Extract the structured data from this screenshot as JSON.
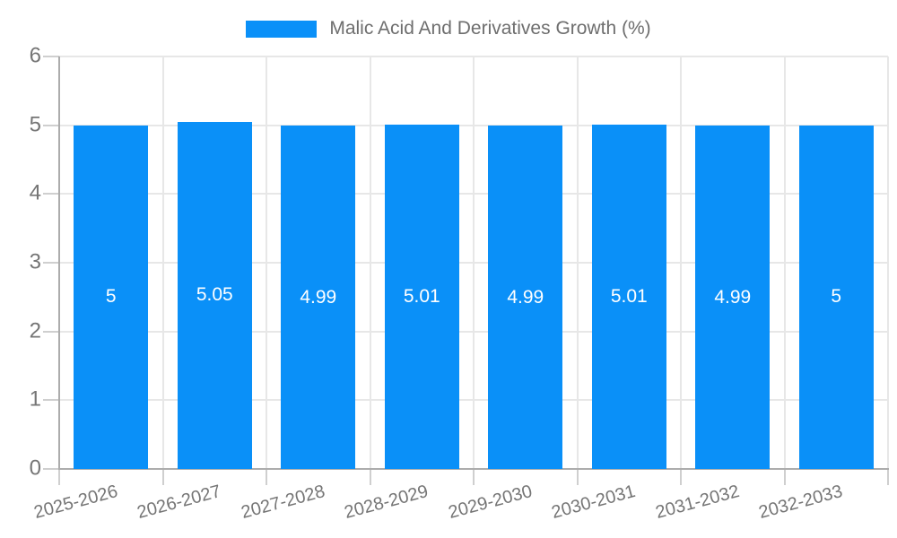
{
  "legend": {
    "label": "Malic Acid And Derivatives Growth (%)",
    "swatch_color": "#0a90f8"
  },
  "chart_data": {
    "type": "bar",
    "title": "Malic Acid And Derivatives Growth (%)",
    "categories": [
      "2025-2026",
      "2026-2027",
      "2027-2028",
      "2028-2029",
      "2029-2030",
      "2030-2031",
      "2031-2032",
      "2032-2033"
    ],
    "values": [
      5,
      5.05,
      4.99,
      5.01,
      4.99,
      5.01,
      4.99,
      5
    ],
    "value_labels": [
      "5",
      "5.05",
      "4.99",
      "5.01",
      "4.99",
      "5.01",
      "4.99",
      "5"
    ],
    "xlabel": "",
    "ylabel": "",
    "ylim": [
      0,
      6
    ],
    "yticks": [
      "0",
      "1",
      "2",
      "3",
      "4",
      "5",
      "6"
    ],
    "grid": true,
    "legend_position": "top-center",
    "colors": {
      "bar": "#0a90f8",
      "grid": "#e7e7e7",
      "axis": "#acacac",
      "tick_mark": "#cfcfcf",
      "axis_text": "#757575",
      "value_text": "#ffffff",
      "legend_text": "#6e6e6e",
      "background": "#ffffff"
    }
  }
}
